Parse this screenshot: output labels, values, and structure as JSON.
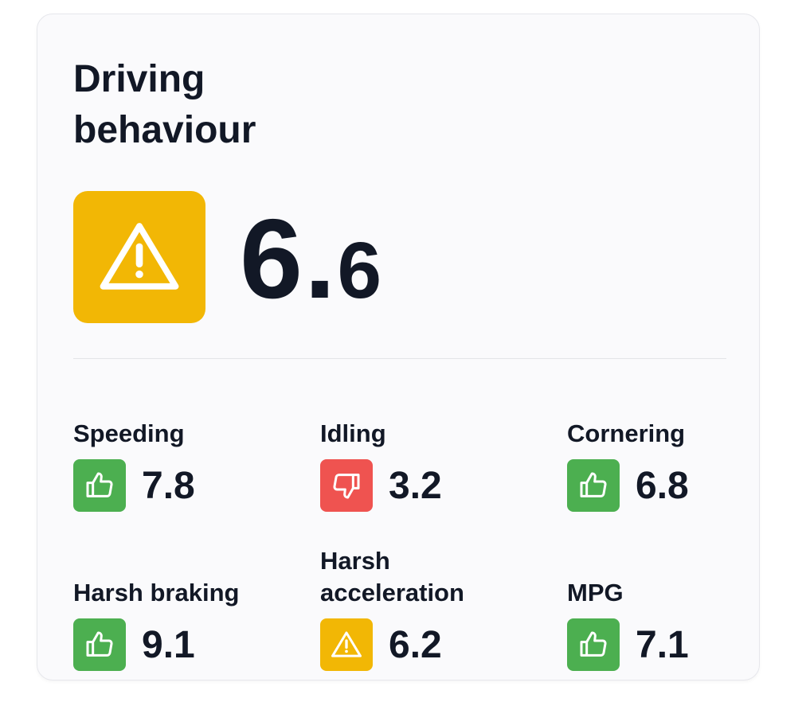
{
  "title": "Driving behaviour",
  "score": 6.6,
  "score_status": "warning",
  "metrics": [
    {
      "label": "Speeding",
      "value": 7.8,
      "status": "good"
    },
    {
      "label": "Idling",
      "value": 3.2,
      "status": "bad"
    },
    {
      "label": "Cornering",
      "value": 6.8,
      "status": "good"
    },
    {
      "label": "Harsh braking",
      "value": 9.1,
      "status": "good"
    },
    {
      "label": "Harsh acceleration",
      "value": 6.2,
      "status": "warning"
    },
    {
      "label": "MPG",
      "value": 7.1,
      "status": "good"
    }
  ]
}
